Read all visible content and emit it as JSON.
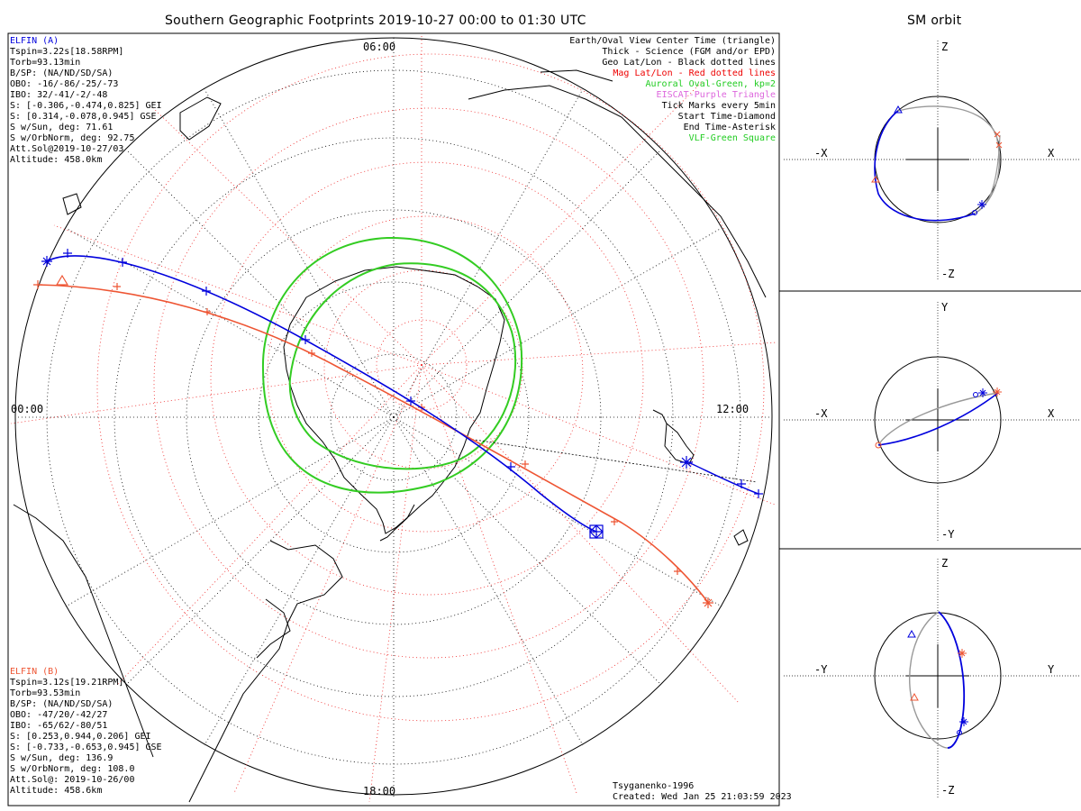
{
  "header": {
    "main_title": "Southern Geographic Footprints 2019-10-27 00:00 to 01:30 UTC",
    "orbit_title": "SM orbit"
  },
  "map": {
    "mlt_labels": {
      "top": "06:00",
      "left": "00:00",
      "right": "12:00",
      "bottom": "18:00"
    }
  },
  "elfin_a": {
    "name": "ELFIN (A)",
    "color": "#0000dd",
    "lines": [
      "Tspin=3.22s[18.58RPM]",
      "Torb=93.13min",
      "B/SP: (NA/ND/SD/SA)",
      "OBO: -16/-86/-25/-73",
      "IBO: 32/-41/-2/-48",
      "S: [-0.306,-0.474,0.825] GEI",
      "S: [0.314,-0.078,0.945] GSE",
      "S w/Sun, deg: 71.61",
      "S w/OrbNorm, deg: 92.75",
      "Att.Sol@2019-10-27/03",
      "Altitude: 458.0km"
    ]
  },
  "elfin_b": {
    "name": "ELFIN (B)",
    "color": "#ee5533",
    "lines": [
      "Tspin=3.12s[19.21RPM]",
      "Torb=93.53min",
      "B/SP: (NA/ND/SD/SA)",
      "OBO: -47/20/-42/27",
      "IBO: -65/62/-80/51",
      "S: [0.253,0.944,0.206] GEI",
      "S: [-0.733,-0.653,0.945] GSE",
      "S w/Sun, deg: 136.9",
      "S w/OrbNorm, deg: 108.0",
      "Att.Sol@: 2019-10-26/00",
      "Altitude: 458.6km"
    ]
  },
  "legend": [
    {
      "text": "Earth/Oval View Center Time (triangle)",
      "color": "#000000"
    },
    {
      "text": "Thick - Science (FGM and/or EPD)",
      "color": "#000000"
    },
    {
      "text": "Geo Lat/Lon - Black dotted lines",
      "color": "#000000"
    },
    {
      "text": "Mag Lat/Lon - Red dotted lines",
      "color": "#ee0000"
    },
    {
      "text": "Auroral Oval-Green, kp=2",
      "color": "#22cc22"
    },
    {
      "text": "EISCAT-Purple Triangle",
      "color": "#dd66dd"
    },
    {
      "text": "Tick Marks every 5min",
      "color": "#000000"
    },
    {
      "text": "Start Time-Diamond",
      "color": "#000000"
    },
    {
      "text": "End Time-Asterisk",
      "color": "#000000"
    },
    {
      "text": "VLF-Green Square",
      "color": "#22cc22"
    }
  ],
  "footer": {
    "model": "Tsyganenko-1996",
    "created": "Created: Wed Jan 25 21:03:59 2023"
  },
  "orbit_panels": [
    {
      "top": "Z",
      "bottom": "-Z",
      "left": "-X",
      "right": "X"
    },
    {
      "top": "Y",
      "bottom": "-Y",
      "left": "-X",
      "right": "X"
    },
    {
      "top": "Z",
      "bottom": "-Z",
      "left": "-Y",
      "right": "Y"
    }
  ]
}
